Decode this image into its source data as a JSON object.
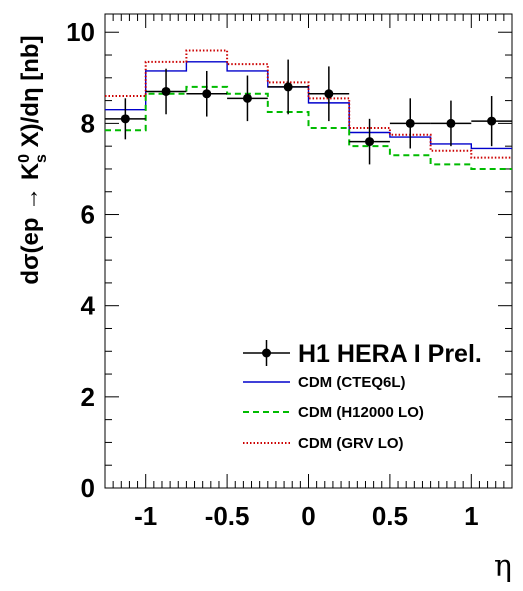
{
  "chart_data": {
    "type": "line",
    "title": "",
    "xlabel": "η",
    "ylabel_parts": {
      "pre": "dσ(ep → K",
      "sup": "0",
      "sub": "s",
      "post": " X)/dη [nb]"
    },
    "xlim": [
      -1.25,
      1.25
    ],
    "ylim": [
      0,
      10.4
    ],
    "xticks": [
      -1,
      -0.5,
      0,
      0.5,
      1
    ],
    "xtick_labels": [
      "-1",
      "-0.5",
      "0",
      "0.5",
      "1"
    ],
    "yticks": [
      0,
      2,
      4,
      6,
      8,
      10
    ],
    "ytick_labels": [
      "0",
      "2",
      "4",
      "6",
      "8",
      "10"
    ],
    "bin_edges": [
      -1.25,
      -1.0,
      -0.75,
      -0.5,
      -0.25,
      0.0,
      0.25,
      0.5,
      0.75,
      1.0,
      1.25
    ],
    "data_series": {
      "name": "H1 HERA I Prel.",
      "x": [
        -1.125,
        -0.875,
        -0.625,
        -0.375,
        -0.125,
        0.125,
        0.375,
        0.625,
        0.875,
        1.125
      ],
      "y": [
        8.1,
        8.7,
        8.65,
        8.55,
        8.8,
        8.65,
        7.6,
        8.0,
        8.0,
        8.05
      ],
      "err": [
        0.45,
        0.5,
        0.5,
        0.5,
        0.6,
        0.6,
        0.5,
        0.55,
        0.5,
        0.55
      ]
    },
    "series": [
      {
        "name": "CDM (CTEQ6L)",
        "color": "#0000cc",
        "style": "solid",
        "values": [
          8.3,
          9.15,
          9.35,
          9.15,
          8.8,
          8.45,
          7.8,
          7.7,
          7.55,
          7.45
        ]
      },
      {
        "name": "CDM (H12000 LO)",
        "color": "#00bb00",
        "style": "dashed",
        "values": [
          7.85,
          8.65,
          8.8,
          8.65,
          8.25,
          7.9,
          7.5,
          7.3,
          7.1,
          7.0
        ]
      },
      {
        "name": "CDM (GRV LO)",
        "color": "#cc0000",
        "style": "dotted",
        "values": [
          8.6,
          9.35,
          9.6,
          9.3,
          8.9,
          8.55,
          7.9,
          7.75,
          7.4,
          7.25
        ]
      }
    ],
    "grid": false,
    "legend_position": "bottom-right"
  }
}
